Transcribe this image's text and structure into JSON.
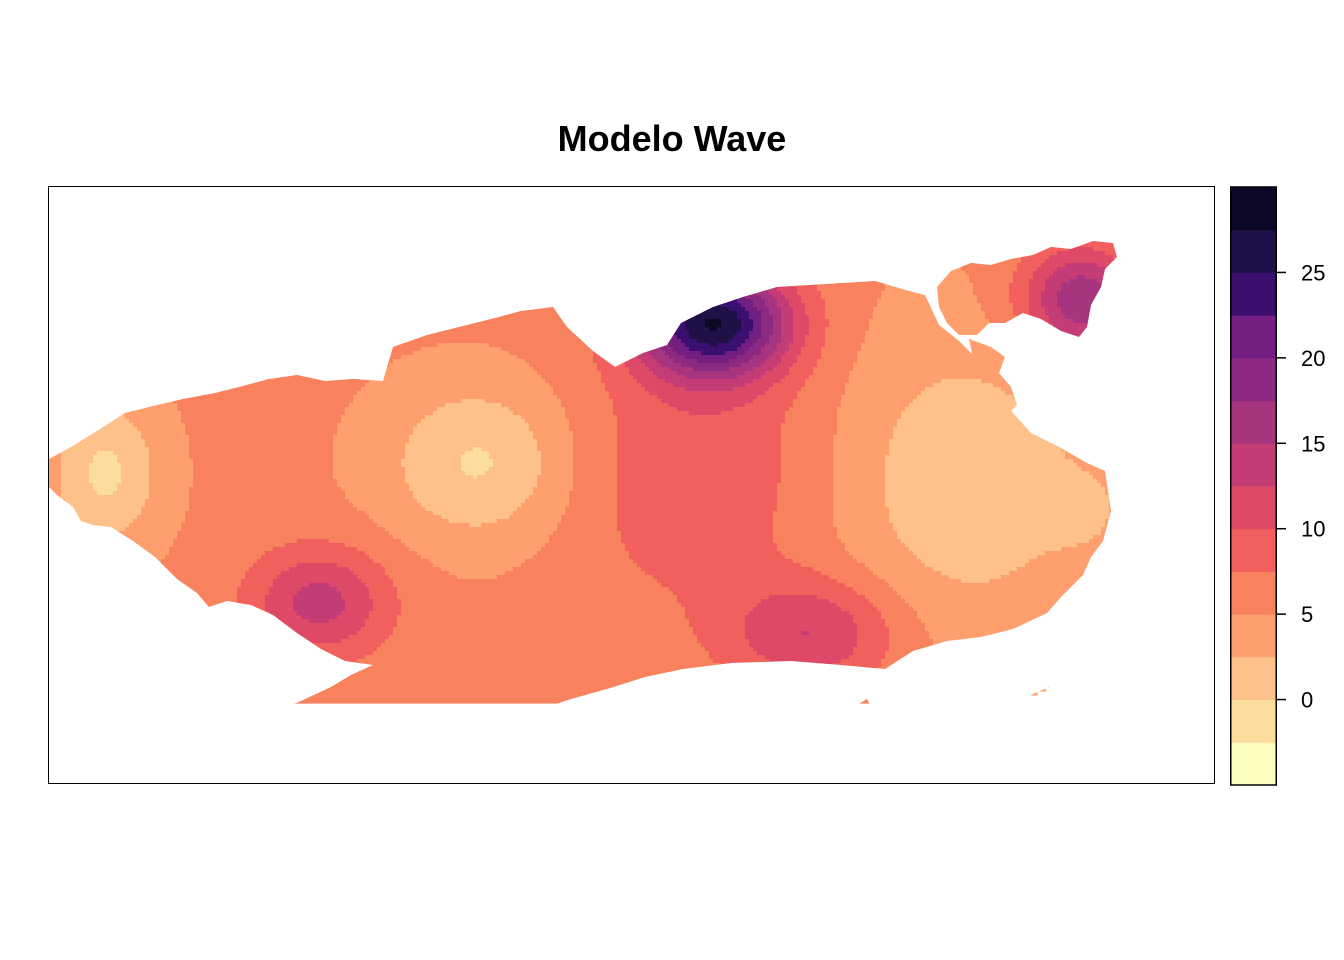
{
  "title": "Modelo Wave",
  "legend": {
    "levels": [
      -5,
      -2.5,
      0,
      2.5,
      5,
      7.5,
      10,
      12.5,
      15,
      17.5,
      20,
      22.5,
      25,
      27.5,
      30
    ],
    "colors": [
      "#FCFDBF",
      "#FDDD9E",
      "#FEC18A",
      "#FE9F6D",
      "#F8825E",
      "#F1605D",
      "#DE4968",
      "#C43C75",
      "#A6347E",
      "#8C2981",
      "#721F81",
      "#3B0F70",
      "#1F1147",
      "#0C0926",
      "#000004"
    ],
    "ticks": [
      {
        "value": 0,
        "label": "0"
      },
      {
        "value": 5,
        "label": "5"
      },
      {
        "value": 10,
        "label": "10"
      },
      {
        "value": 15,
        "label": "15"
      },
      {
        "value": 20,
        "label": "20"
      },
      {
        "value": 25,
        "label": "25"
      }
    ]
  },
  "map": {
    "background": "#ffffff",
    "outline": "#000000"
  }
}
